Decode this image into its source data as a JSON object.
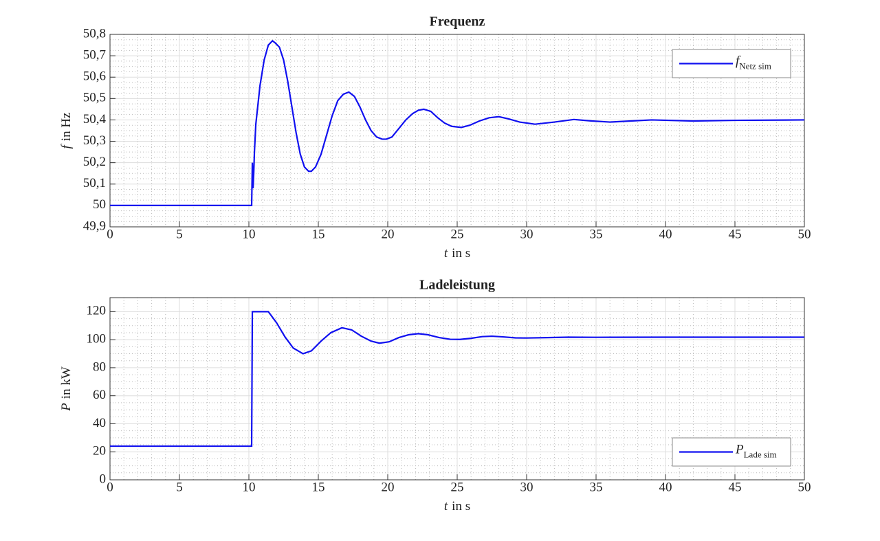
{
  "chart_data": [
    {
      "type": "line",
      "title": "Frequenz",
      "xlabel": {
        "symbol": "t",
        "text": "in s"
      },
      "ylabel": {
        "symbol": "f",
        "text": "in Hz"
      },
      "xlim": [
        0,
        50
      ],
      "xticks": [
        0,
        5,
        10,
        15,
        20,
        25,
        30,
        35,
        40,
        45,
        50
      ],
      "ylim": [
        49.9,
        50.8
      ],
      "yticks": [
        {
          "value": 49.9,
          "label": "49,9"
        },
        50,
        {
          "value": 50.1,
          "label": "50,1"
        },
        {
          "value": 50.2,
          "label": "50,2"
        },
        {
          "value": 50.3,
          "label": "50,3"
        },
        {
          "value": 50.4,
          "label": "50,4"
        },
        {
          "value": 50.5,
          "label": "50,5"
        },
        {
          "value": 50.6,
          "label": "50,6"
        },
        {
          "value": 50.7,
          "label": "50,7"
        },
        {
          "value": 50.8,
          "label": "50,8"
        }
      ],
      "grid": true,
      "minor_grid": true,
      "legend": "northeast",
      "x": [
        0,
        10.2,
        10.25,
        10.3,
        10.35,
        10.4,
        10.5,
        10.8,
        11.1,
        11.4,
        11.7,
        11.9,
        12.2,
        12.5,
        12.8,
        13.1,
        13.4,
        13.7,
        14.0,
        14.3,
        14.5,
        14.8,
        15.2,
        15.6,
        16.0,
        16.4,
        16.8,
        17.2,
        17.6,
        18.0,
        18.4,
        18.8,
        19.2,
        19.6,
        19.9,
        20.3,
        20.8,
        21.3,
        21.8,
        22.2,
        22.6,
        23.1,
        23.6,
        24.1,
        24.6,
        25.3,
        25.9,
        26.6,
        27.3,
        28.0,
        28.7,
        29.5,
        30.6,
        32.0,
        33.4,
        34.7,
        36.0,
        37.5,
        39.0,
        42,
        45,
        50
      ],
      "series": [
        {
          "name": "f",
          "subscript": "Netz sim",
          "color": "#1010f0",
          "values": [
            50.0,
            50.0,
            50.2,
            50.08,
            50.15,
            50.25,
            50.38,
            50.56,
            50.68,
            50.75,
            50.77,
            50.76,
            50.74,
            50.68,
            50.58,
            50.46,
            50.34,
            50.24,
            50.18,
            50.16,
            50.16,
            50.18,
            50.24,
            50.33,
            50.42,
            50.49,
            50.52,
            50.53,
            50.51,
            50.46,
            50.4,
            50.35,
            50.32,
            50.31,
            50.31,
            50.32,
            50.36,
            50.4,
            50.43,
            50.445,
            50.45,
            50.44,
            50.41,
            50.385,
            50.37,
            50.365,
            50.375,
            50.395,
            50.41,
            50.415,
            50.405,
            50.39,
            50.38,
            50.39,
            50.402,
            50.395,
            50.39,
            50.395,
            50.4,
            50.395,
            50.398,
            50.4
          ]
        }
      ]
    },
    {
      "type": "line",
      "title": "Ladeleistung",
      "xlabel": {
        "symbol": "t",
        "text": "in s"
      },
      "ylabel": {
        "symbol": "P",
        "text": "in kW"
      },
      "xlim": [
        0,
        50
      ],
      "xticks": [
        0,
        5,
        10,
        15,
        20,
        25,
        30,
        35,
        40,
        45,
        50
      ],
      "ylim": [
        0,
        130
      ],
      "yticks": [
        0,
        20,
        40,
        60,
        80,
        100,
        120
      ],
      "grid": true,
      "minor_grid": true,
      "legend": "southeast",
      "x": [
        0,
        10.2,
        10.25,
        11.4,
        12.0,
        12.6,
        13.2,
        13.9,
        14.5,
        15.2,
        15.9,
        16.7,
        17.4,
        18.1,
        18.8,
        19.4,
        20.1,
        20.8,
        21.5,
        22.2,
        22.9,
        23.7,
        24.5,
        25.2,
        26.0,
        26.8,
        27.5,
        28.3,
        29.2,
        30.0,
        31.5,
        33.0,
        35,
        40,
        45,
        50
      ],
      "series": [
        {
          "name": "P",
          "subscript": "Lade sim",
          "color": "#1010f0",
          "values": [
            24,
            24,
            120,
            120,
            112,
            102,
            94,
            90,
            92,
            99,
            105,
            108.5,
            107,
            102.5,
            99,
            97.5,
            98.5,
            101.5,
            103.5,
            104.3,
            103.5,
            101.5,
            100.3,
            100.2,
            101,
            102.2,
            102.5,
            102,
            101.3,
            101.2,
            101.5,
            101.8,
            101.7,
            101.8,
            101.8,
            101.8
          ]
        }
      ]
    }
  ]
}
